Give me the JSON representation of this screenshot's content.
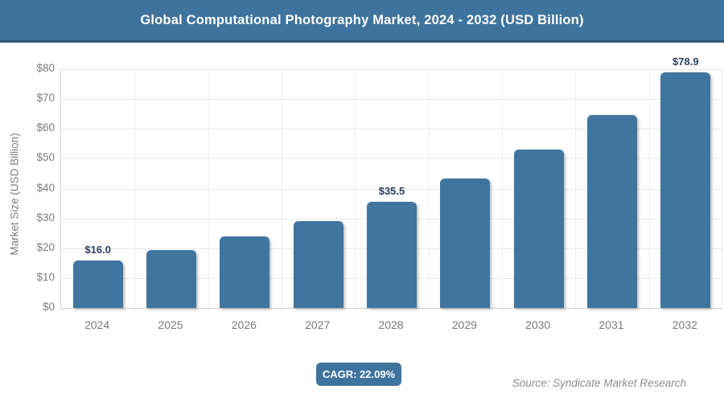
{
  "header": {
    "title": "Global Computational Photography Market, 2024 - 2032 (USD Billion)",
    "bg_color": "#3E739D",
    "text_color": "#ffffff"
  },
  "chart_data": {
    "type": "bar",
    "title": "Global Computational Photography Market, 2024 - 2032 (USD Billion)",
    "categories": [
      "2024",
      "2025",
      "2026",
      "2027",
      "2028",
      "2029",
      "2030",
      "2031",
      "2032"
    ],
    "values": [
      16.0,
      19.5,
      23.9,
      29.1,
      35.5,
      43.4,
      53.0,
      64.7,
      78.9
    ],
    "point_labels": [
      "$16.0",
      null,
      null,
      null,
      "$35.5",
      null,
      null,
      null,
      "$78.9"
    ],
    "xlabel": "",
    "ylabel": "Market Size (USD Billion)",
    "ylim": [
      0,
      80
    ],
    "ytick_step": 10,
    "ytick_labels": [
      "$0",
      "$10",
      "$20",
      "$30",
      "$40",
      "$50",
      "$60",
      "$70",
      "$80"
    ],
    "grid": true,
    "legend": "none",
    "bar_color": "#3F759E",
    "point_label_color": "#2A3F5F"
  },
  "footer": {
    "cagr_label": "CAGR: 22.09%",
    "source": "Source: Syndicate Market Research"
  }
}
